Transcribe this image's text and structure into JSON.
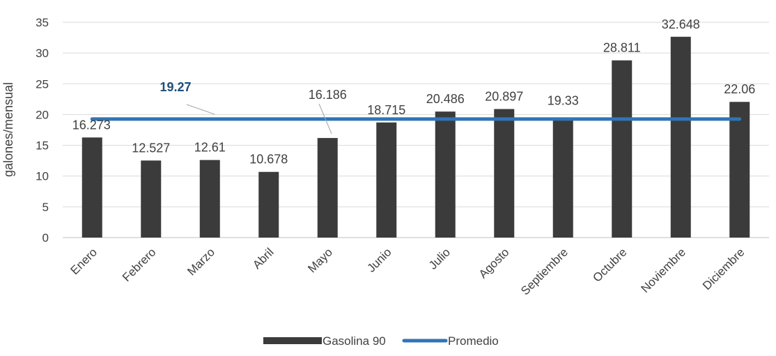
{
  "chart_data": {
    "type": "bar",
    "categories": [
      "Enero",
      "Febrero",
      "Marzo",
      "Abril",
      "Mayo",
      "Junio",
      "Julio",
      "Agosto",
      "Septiembre",
      "Octubre",
      "Noviembre",
      "Diciembre"
    ],
    "series": [
      {
        "name": "Gasolina 90",
        "type": "bar",
        "values": [
          16.273,
          12.527,
          12.61,
          10.678,
          16.186,
          18.715,
          20.486,
          20.897,
          19.33,
          28.811,
          32.648,
          22.06
        ],
        "color": "#3b3b3b"
      },
      {
        "name": "Promedio",
        "type": "line",
        "values": [
          19.27,
          19.27,
          19.27,
          19.27,
          19.27,
          19.27,
          19.27,
          19.27,
          19.27,
          19.27,
          19.27,
          19.27
        ],
        "color": "#2e75b6"
      }
    ],
    "average_label": "19.27",
    "average_label_color": "#1f4e79",
    "xlabel": "",
    "ylabel": "galones/mensual",
    "ylim": [
      0,
      35
    ],
    "yticks": [
      0,
      5,
      10,
      15,
      20,
      25,
      30,
      35
    ],
    "grid": true,
    "legend_position": "bottom"
  }
}
